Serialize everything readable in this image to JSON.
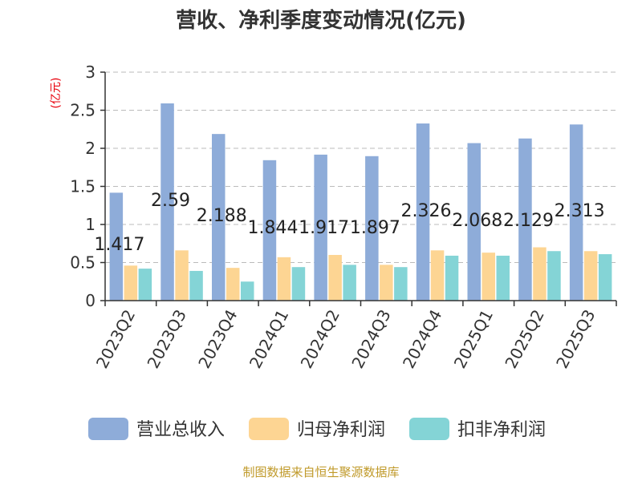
{
  "title": "营收、净利季度变动情况(亿元)",
  "unit_label": "(亿元)",
  "footer": "制图数据来自恒生聚源数据库",
  "colors": {
    "revenue": "#8eacd9",
    "net_profit": "#fdd593",
    "deducted_profit": "#84d4d6",
    "unit": "#e8000b",
    "footer": "#c09a2a",
    "grid": "#bbbbbb",
    "axis": "#333333"
  },
  "chart_data": {
    "type": "bar",
    "categories": [
      "2023Q2",
      "2023Q3",
      "2023Q4",
      "2024Q1",
      "2024Q2",
      "2024Q3",
      "2024Q4",
      "2025Q1",
      "2025Q2",
      "2025Q3"
    ],
    "series": [
      {
        "name": "营业总收入",
        "values": [
          1.417,
          2.59,
          2.188,
          1.844,
          1.917,
          1.897,
          2.326,
          2.068,
          2.129,
          2.313
        ],
        "labels": [
          "1.417",
          "2.59",
          "2.188",
          "1.844",
          "1.917",
          "1.897",
          "2.326",
          "2.068",
          "2.129",
          "2.313"
        ]
      },
      {
        "name": "归母净利润",
        "values": [
          0.46,
          0.66,
          0.43,
          0.57,
          0.6,
          0.47,
          0.66,
          0.63,
          0.7,
          0.65
        ]
      },
      {
        "name": "扣非净利润",
        "values": [
          0.42,
          0.39,
          0.25,
          0.44,
          0.47,
          0.44,
          0.59,
          0.59,
          0.65,
          0.61
        ]
      }
    ],
    "yticks": [
      "0",
      "0.5",
      "1",
      "1.5",
      "2",
      "2.5",
      "3"
    ],
    "ylim": [
      0,
      3
    ],
    "grid": true,
    "legend_position": "bottom"
  }
}
